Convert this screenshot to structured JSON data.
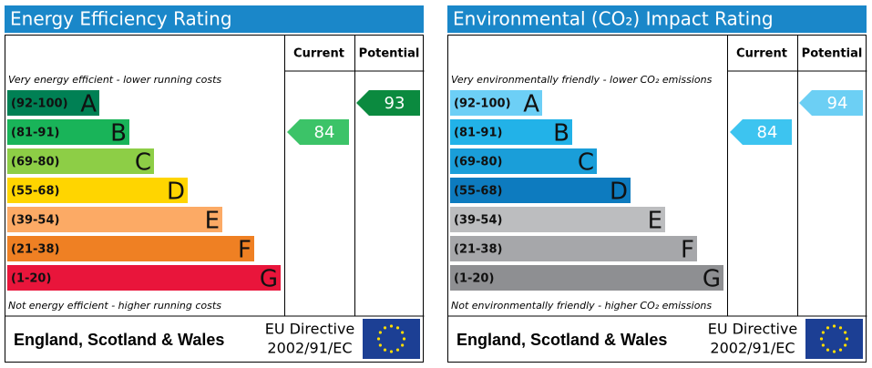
{
  "panels": [
    {
      "title": "Energy Efficiency Rating",
      "col_current": "Current",
      "col_potential": "Potential",
      "top_note": "Very energy efficient - lower running costs",
      "bottom_note": "Not energy efficient - higher running costs",
      "bands": [
        {
          "range": "(92-100)",
          "letter": "A",
          "color": "#008054"
        },
        {
          "range": "(81-91)",
          "letter": "B",
          "color": "#19b459"
        },
        {
          "range": "(69-80)",
          "letter": "C",
          "color": "#8dce46"
        },
        {
          "range": "(55-68)",
          "letter": "D",
          "color": "#ffd500"
        },
        {
          "range": "(39-54)",
          "letter": "E",
          "color": "#fcaa65"
        },
        {
          "range": "(21-38)",
          "letter": "F",
          "color": "#ef8023"
        },
        {
          "range": "(1-20)",
          "letter": "G",
          "color": "#e9153b"
        }
      ],
      "current": 84,
      "current_color": "#3cc368",
      "potential": 93,
      "potential_color": "#0b8a3f",
      "region": "England, Scotland & Wales",
      "directive": [
        "EU Directive",
        "2002/91/EC"
      ]
    },
    {
      "title": "Environmental (CO₂) Impact Rating",
      "col_current": "Current",
      "col_potential": "Potential",
      "top_note": "Very environmentally friendly - lower CO₂ emissions",
      "bottom_note": "Not environmentally friendly - higher CO₂ emissions",
      "bands": [
        {
          "range": "(92-100)",
          "letter": "A",
          "color": "#6dcff6"
        },
        {
          "range": "(81-91)",
          "letter": "B",
          "color": "#22b2e8"
        },
        {
          "range": "(69-80)",
          "letter": "C",
          "color": "#1a9ed9"
        },
        {
          "range": "(55-68)",
          "letter": "D",
          "color": "#0d7bbf"
        },
        {
          "range": "(39-54)",
          "letter": "E",
          "color": "#bcbdbf"
        },
        {
          "range": "(21-38)",
          "letter": "F",
          "color": "#a6a7aa"
        },
        {
          "range": "(1-20)",
          "letter": "G",
          "color": "#8e8f92"
        }
      ],
      "current": 84,
      "current_color": "#3dc4f0",
      "potential": 94,
      "potential_color": "#6ccff4",
      "region": "England, Scotland & Wales",
      "directive": [
        "EU Directive",
        "2002/91/EC"
      ]
    }
  ]
}
